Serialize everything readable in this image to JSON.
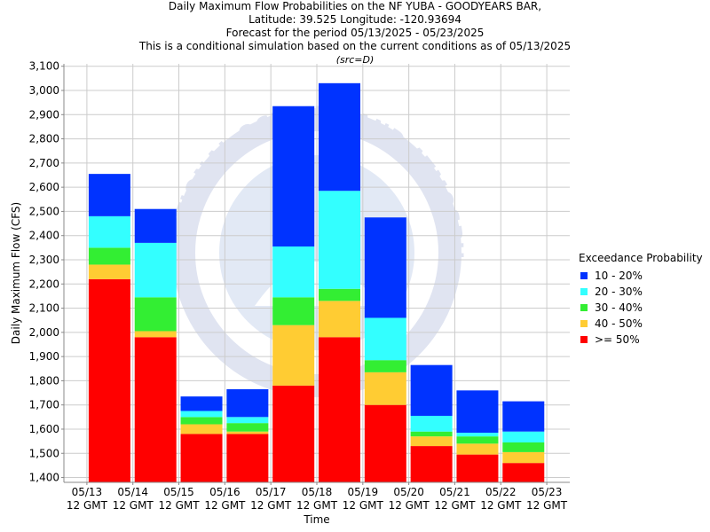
{
  "title_lines": [
    "Daily Maximum Flow Probabilities on the NF YUBA - GOODYEARS BAR,",
    "Latitude: 39.525 Longitude: -120.93694",
    "Forecast for the period 05/13/2025 - 05/23/2025",
    "This is a conditional simulation based on the current conditions as of 05/13/2025"
  ],
  "subtitle": "(src=D)",
  "watermark": "NATIONAL OCEANIC AND ATMOSPHERIC ADMINISTRATION - U.S. DEPARTMENT OF COMMERCE",
  "chart_data": {
    "type": "bar",
    "stacked": true,
    "xlabel": "Time",
    "ylabel": "Daily Maximum Flow (CFS)",
    "ylim": [
      1380,
      3110
    ],
    "yticks": [
      1400,
      1500,
      1600,
      1700,
      1800,
      1900,
      2000,
      2100,
      2200,
      2300,
      2400,
      2500,
      2600,
      2700,
      2800,
      2900,
      3000,
      3100
    ],
    "xtick_labels": [
      [
        "05/13",
        "12 GMT"
      ],
      [
        "05/14",
        "12 GMT"
      ],
      [
        "05/15",
        "12 GMT"
      ],
      [
        "05/16",
        "12 GMT"
      ],
      [
        "05/17",
        "12 GMT"
      ],
      [
        "05/18",
        "12 GMT"
      ],
      [
        "05/19",
        "12 GMT"
      ],
      [
        "05/20",
        "12 GMT"
      ],
      [
        "05/21",
        "12 GMT"
      ],
      [
        "05/22",
        "12 GMT"
      ],
      [
        "05/23",
        "12 GMT"
      ]
    ],
    "legend_title": "Exceedance Probability",
    "legend_position": "right",
    "grid": true,
    "series": [
      {
        "name": "10 - 20%",
        "color": "#0033ff"
      },
      {
        "name": "20 - 30%",
        "color": "#33ffff"
      },
      {
        "name": "30 - 40%",
        "color": "#33ee33"
      },
      {
        "name": "40 - 50%",
        "color": "#ffcc33"
      },
      {
        "name": ">= 50%",
        "color": "#ff0000"
      }
    ],
    "bars": [
      {
        "date": "05/13",
        "ge50": 2220,
        "p40_50": 2280,
        "p30_40": 2350,
        "p20_30": 2480,
        "p10_20": 2655
      },
      {
        "date": "05/14",
        "ge50": 1980,
        "p40_50": 2005,
        "p30_40": 2145,
        "p20_30": 2370,
        "p10_20": 2510
      },
      {
        "date": "05/15",
        "ge50": 1580,
        "p40_50": 1620,
        "p30_40": 1650,
        "p20_30": 1675,
        "p10_20": 1735
      },
      {
        "date": "05/16",
        "ge50": 1580,
        "p40_50": 1590,
        "p30_40": 1625,
        "p20_30": 1650,
        "p10_20": 1765
      },
      {
        "date": "05/17",
        "ge50": 1780,
        "p40_50": 2030,
        "p30_40": 2145,
        "p20_30": 2355,
        "p10_20": 2935
      },
      {
        "date": "05/18",
        "ge50": 1980,
        "p40_50": 2130,
        "p30_40": 2180,
        "p20_30": 2585,
        "p10_20": 3030
      },
      {
        "date": "05/19",
        "ge50": 1700,
        "p40_50": 1835,
        "p30_40": 1885,
        "p20_30": 2060,
        "p10_20": 2475
      },
      {
        "date": "05/20",
        "ge50": 1530,
        "p40_50": 1570,
        "p30_40": 1590,
        "p20_30": 1655,
        "p10_20": 1865
      },
      {
        "date": "05/21",
        "ge50": 1495,
        "p40_50": 1540,
        "p30_40": 1570,
        "p20_30": 1585,
        "p10_20": 1760
      },
      {
        "date": "05/22",
        "ge50": 1460,
        "p40_50": 1505,
        "p30_40": 1545,
        "p20_30": 1590,
        "p10_20": 1715
      }
    ]
  }
}
